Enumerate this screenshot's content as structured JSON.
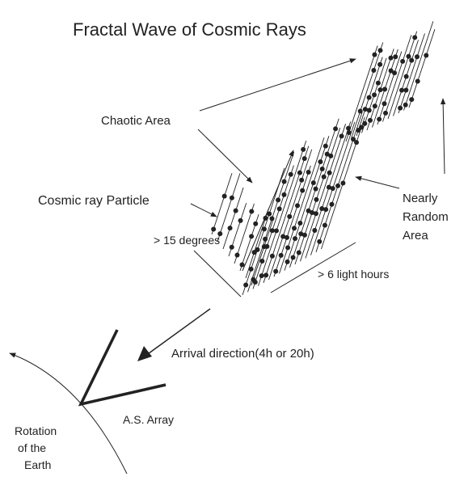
{
  "title": "Fractal Wave of Cosmic Rays",
  "labels": {
    "chaotic_area": "Chaotic Area",
    "cosmic_ray_particle": "Cosmic ray Particle",
    "nearly_random_area": [
      "Nearly",
      "Random",
      "Area"
    ],
    "angle": "> 15 degrees",
    "width": "> 6 light hours",
    "arrival_direction": "Arrival direction(4h or 20h)",
    "array": "A.S. Array",
    "rotation": [
      "Rotation",
      "of the",
      "Earth"
    ]
  }
}
